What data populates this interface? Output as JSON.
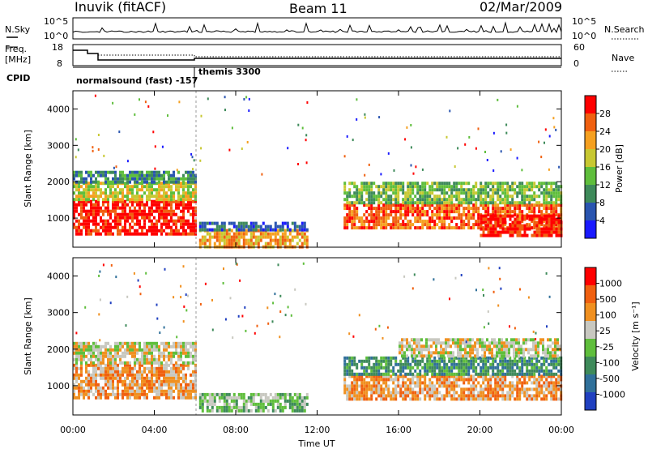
{
  "header": {
    "station": "Inuvik (fitACF)",
    "beam": "Beam 11",
    "date": "02/Mar/2009"
  },
  "top_panels": {
    "nsky_label": "N.Sky",
    "nsearch_label": "N.Search",
    "nsky_ticks": [
      "10^5",
      "10^0"
    ],
    "nsearch_ticks": [
      "10^5",
      "10^0"
    ],
    "freq_label_1": "Freq.",
    "freq_label_2": "[MHz]",
    "freq_ticks": [
      "18",
      "8"
    ],
    "nave_label": "Nave",
    "nave_ticks": [
      "60",
      "0"
    ],
    "cpid_label": "CPID",
    "cpid_program_1": "normalsound (fast) -157",
    "cpid_program_2": "themis 3300"
  },
  "x_axis": {
    "title": "Time UT",
    "ticks": [
      "00:00",
      "04:00",
      "08:00",
      "12:00",
      "16:00",
      "20:00",
      "00:00"
    ]
  },
  "colors": {
    "power_scale": [
      "#1a1aff",
      "#2a55b0",
      "#3e8a5a",
      "#5fbe3c",
      "#c8c832",
      "#f5a020",
      "#f06010",
      "#ff0000"
    ],
    "velocity_scale": [
      "#2040c0",
      "#30709a",
      "#3e8a5a",
      "#5fbe3c",
      "#c8c8c0",
      "#f09020",
      "#f06010",
      "#ff0000"
    ]
  },
  "chart_data": [
    {
      "type": "heatmap",
      "name": "power",
      "ylabel": "Slant Range [km]",
      "xlabel": "",
      "yticks": [
        "1000",
        "2000",
        "3000",
        "4000"
      ],
      "ylim": [
        200,
        4500
      ],
      "xlim_hours": [
        0,
        24
      ],
      "colorbar_label": "Power [dB]",
      "colorbar_ticks": [
        "28",
        "24",
        "20",
        "16",
        "12",
        "8",
        "4"
      ],
      "regions": [
        {
          "t0": 0.0,
          "t1": 6.0,
          "r0": 600,
          "r1": 1500,
          "level": 7
        },
        {
          "t0": 0.0,
          "t1": 6.0,
          "r0": 1500,
          "r1": 2000,
          "level": 4
        },
        {
          "t0": 0.0,
          "t1": 6.0,
          "r0": 2000,
          "r1": 2300,
          "level": 2
        },
        {
          "t0": 6.2,
          "t1": 11.5,
          "r0": 250,
          "r1": 700,
          "level": 5
        },
        {
          "t0": 6.2,
          "t1": 11.5,
          "r0": 700,
          "r1": 900,
          "level": 1
        },
        {
          "t0": 13.3,
          "t1": 24.0,
          "r0": 700,
          "r1": 1400,
          "level": 6
        },
        {
          "t0": 13.3,
          "t1": 24.0,
          "r0": 1400,
          "r1": 2000,
          "level": 3
        },
        {
          "t0": 20.0,
          "t1": 24.0,
          "r0": 500,
          "r1": 1100,
          "level": 7
        }
      ]
    },
    {
      "type": "heatmap",
      "name": "velocity",
      "ylabel": "Slant Range [km]",
      "xlabel": "Time UT",
      "yticks": [
        "1000",
        "2000",
        "3000",
        "4000"
      ],
      "ylim": [
        200,
        4500
      ],
      "xlim_hours": [
        0,
        24
      ],
      "colorbar_label": "Velocity [m s⁻¹]",
      "colorbar_ticks": [
        "1000",
        "500",
        "100",
        "25",
        "-25",
        "-100",
        "-500",
        "-1000"
      ],
      "regions": [
        {
          "t0": 0.0,
          "t1": 6.0,
          "r0": 700,
          "r1": 1600,
          "level": 5
        },
        {
          "t0": 0.0,
          "t1": 6.0,
          "r0": 1600,
          "r1": 2200,
          "level": 4
        },
        {
          "t0": 6.2,
          "t1": 11.5,
          "r0": 300,
          "r1": 800,
          "level": 3
        },
        {
          "t0": 13.3,
          "t1": 24.0,
          "r0": 600,
          "r1": 1300,
          "level": 5
        },
        {
          "t0": 13.3,
          "t1": 24.0,
          "r0": 1300,
          "r1": 1800,
          "level": 2
        },
        {
          "t0": 16.0,
          "t1": 24.0,
          "r0": 1800,
          "r1": 2300,
          "level": 4
        }
      ]
    }
  ]
}
